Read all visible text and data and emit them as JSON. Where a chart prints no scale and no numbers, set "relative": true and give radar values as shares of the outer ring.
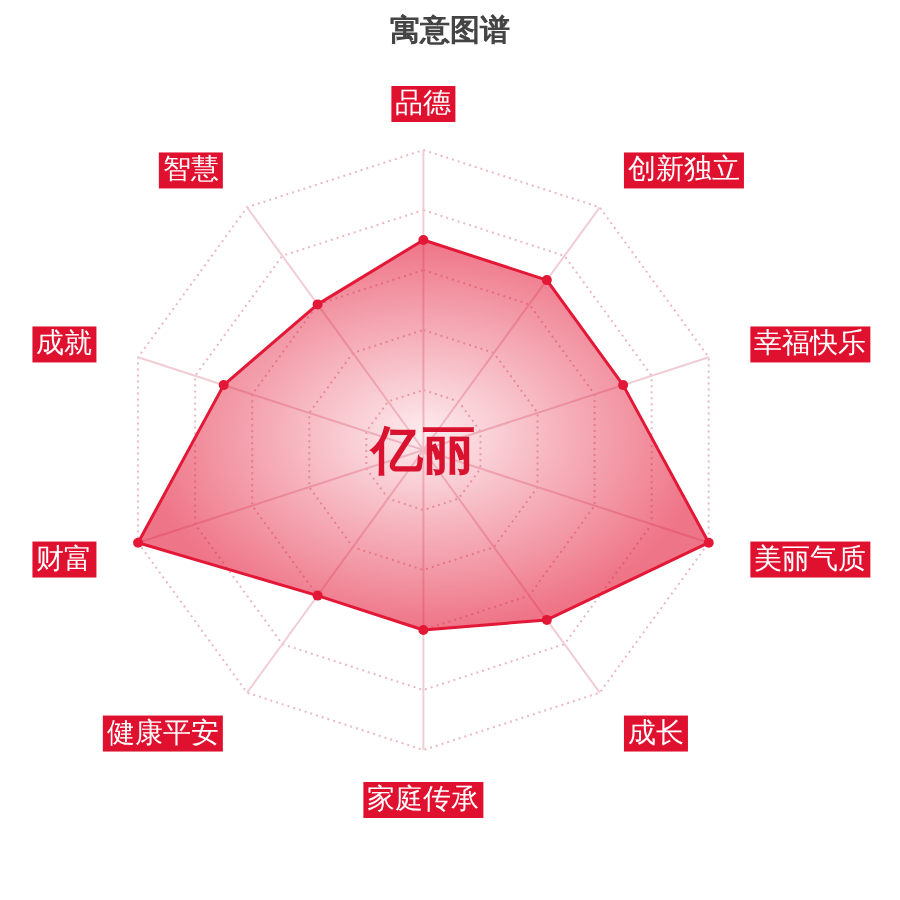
{
  "chart_data": {
    "type": "radar",
    "title": "寓意图谱",
    "annotations": [
      "亿丽"
    ],
    "categories": [
      "品德",
      "创新独立",
      "幸福快乐",
      "美丽气质",
      "成长",
      "家庭传承",
      "健康平安",
      "财富",
      "成就",
      "智慧"
    ],
    "series": [
      {
        "color": "#e31837",
        "values": [
          0.7,
          0.7,
          0.7,
          1.0,
          0.7,
          0.6,
          0.6,
          1.0,
          0.7,
          0.6
        ]
      }
    ],
    "relative": true,
    "grid": true,
    "marker": "circle"
  }
}
